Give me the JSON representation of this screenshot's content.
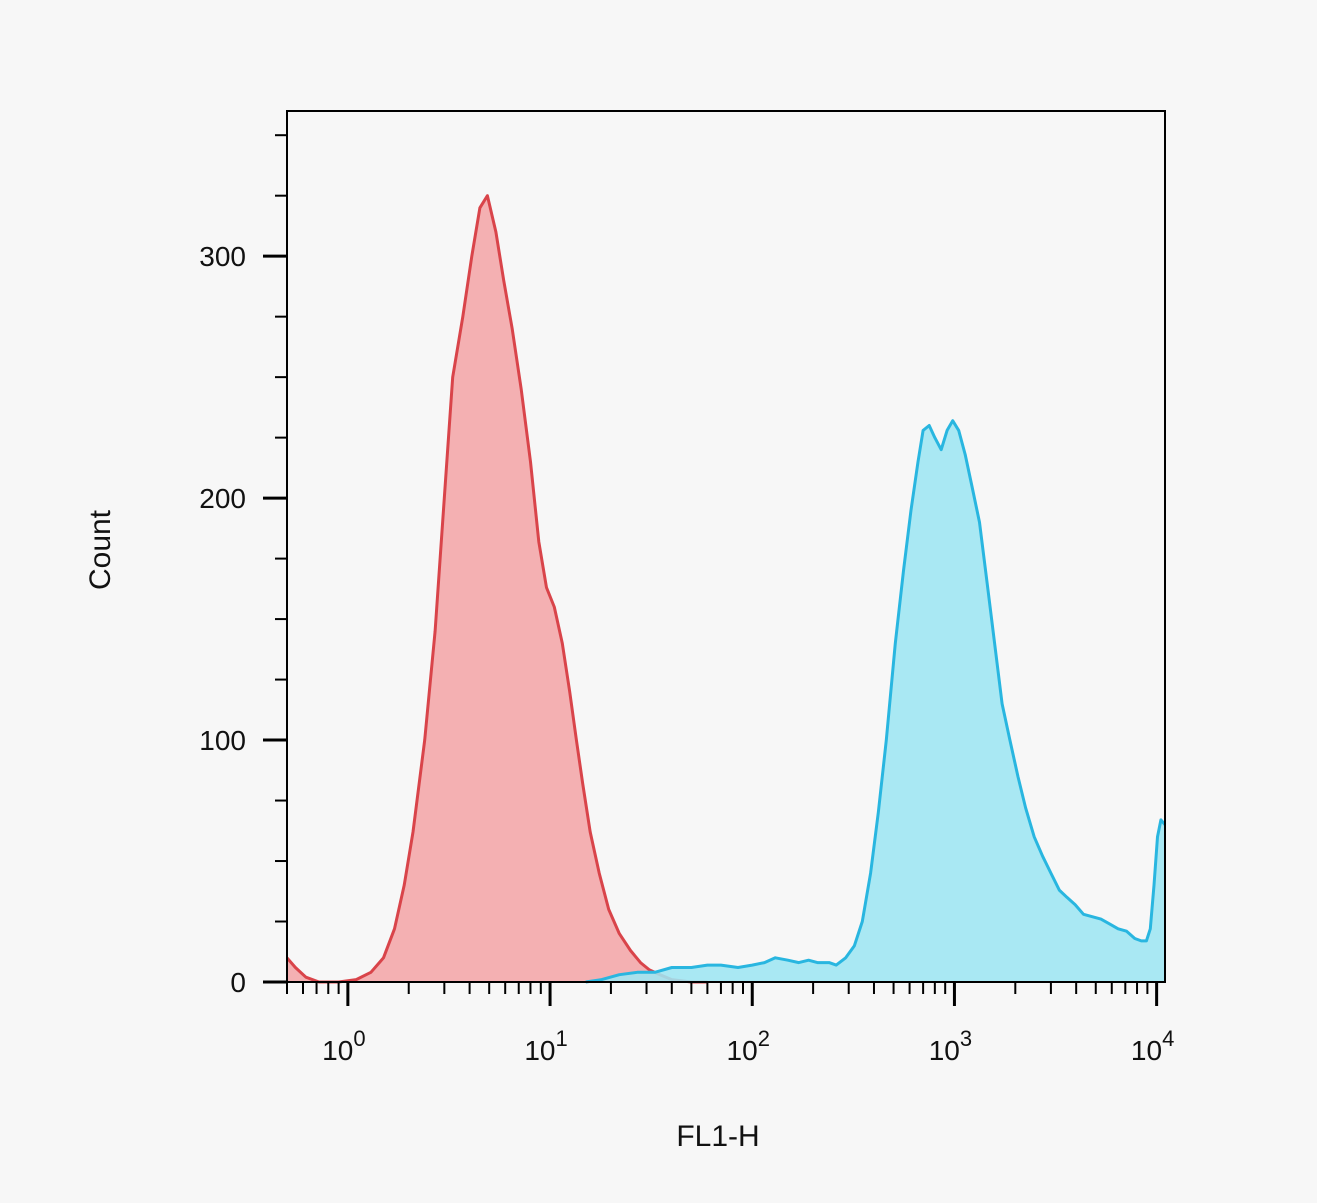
{
  "chart_data": {
    "type": "area",
    "title": "",
    "xlabel": "FL1-H",
    "ylabel": "Count",
    "x_scale": "log",
    "xlim": [
      0.5,
      11000
    ],
    "ylim": [
      0,
      360
    ],
    "x_ticks": [
      {
        "value": 1,
        "base": "10",
        "exp": "0"
      },
      {
        "value": 10,
        "base": "10",
        "exp": "1"
      },
      {
        "value": 100,
        "base": "10",
        "exp": "2"
      },
      {
        "value": 1000,
        "base": "10",
        "exp": "3"
      },
      {
        "value": 10000,
        "base": "10",
        "exp": "4"
      }
    ],
    "y_ticks": [
      {
        "value": 0,
        "label": "0"
      },
      {
        "value": 100,
        "label": "100"
      },
      {
        "value": 200,
        "label": "200"
      },
      {
        "value": 300,
        "label": "300"
      }
    ],
    "grid": false,
    "legend": "none",
    "series": [
      {
        "line_color": "#d9444a",
        "fill_color": "#f4a6a8",
        "points": [
          [
            0.5,
            10
          ],
          [
            0.55,
            6
          ],
          [
            0.62,
            2
          ],
          [
            0.72,
            0
          ],
          [
            0.9,
            0
          ],
          [
            1.1,
            1
          ],
          [
            1.3,
            4
          ],
          [
            1.5,
            10
          ],
          [
            1.7,
            22
          ],
          [
            1.9,
            40
          ],
          [
            2.1,
            62
          ],
          [
            2.4,
            100
          ],
          [
            2.7,
            145
          ],
          [
            3.0,
            200
          ],
          [
            3.3,
            250
          ],
          [
            3.7,
            275
          ],
          [
            4.1,
            300
          ],
          [
            4.5,
            320
          ],
          [
            4.9,
            325
          ],
          [
            5.4,
            310
          ],
          [
            5.9,
            290
          ],
          [
            6.5,
            270
          ],
          [
            7.2,
            245
          ],
          [
            8.0,
            215
          ],
          [
            8.8,
            182
          ],
          [
            9.6,
            163
          ],
          [
            10.5,
            155
          ],
          [
            11.5,
            140
          ],
          [
            12.5,
            120
          ],
          [
            13.5,
            100
          ],
          [
            14.5,
            82
          ],
          [
            15.8,
            62
          ],
          [
            17.5,
            45
          ],
          [
            19.5,
            30
          ],
          [
            22,
            20
          ],
          [
            25,
            13
          ],
          [
            28,
            8
          ],
          [
            31,
            5
          ],
          [
            35,
            3
          ],
          [
            40,
            1
          ],
          [
            50,
            0
          ],
          [
            60,
            0
          ]
        ]
      },
      {
        "line_color": "#29b6e0",
        "fill_color": "#9ee6f2",
        "points": [
          [
            15,
            0
          ],
          [
            18,
            1
          ],
          [
            22,
            3
          ],
          [
            27,
            4
          ],
          [
            33,
            4
          ],
          [
            40,
            6
          ],
          [
            50,
            6
          ],
          [
            60,
            7
          ],
          [
            70,
            7
          ],
          [
            85,
            6
          ],
          [
            100,
            7
          ],
          [
            115,
            8
          ],
          [
            130,
            10
          ],
          [
            150,
            9
          ],
          [
            170,
            8
          ],
          [
            190,
            9
          ],
          [
            210,
            8
          ],
          [
            240,
            8
          ],
          [
            260,
            7
          ],
          [
            290,
            10
          ],
          [
            320,
            15
          ],
          [
            350,
            25
          ],
          [
            385,
            45
          ],
          [
            420,
            70
          ],
          [
            460,
            100
          ],
          [
            510,
            140
          ],
          [
            560,
            170
          ],
          [
            610,
            195
          ],
          [
            660,
            215
          ],
          [
            700,
            228
          ],
          [
            750,
            230
          ],
          [
            800,
            225
          ],
          [
            860,
            220
          ],
          [
            920,
            228
          ],
          [
            980,
            232
          ],
          [
            1050,
            228
          ],
          [
            1130,
            218
          ],
          [
            1220,
            205
          ],
          [
            1330,
            190
          ],
          [
            1450,
            165
          ],
          [
            1580,
            140
          ],
          [
            1720,
            115
          ],
          [
            1880,
            100
          ],
          [
            2060,
            85
          ],
          [
            2250,
            72
          ],
          [
            2480,
            60
          ],
          [
            2730,
            52
          ],
          [
            3000,
            45
          ],
          [
            3300,
            38
          ],
          [
            3600,
            35
          ],
          [
            3950,
            32
          ],
          [
            4350,
            28
          ],
          [
            4800,
            27
          ],
          [
            5300,
            26
          ],
          [
            5850,
            24
          ],
          [
            6450,
            22
          ],
          [
            7100,
            21
          ],
          [
            7800,
            18
          ],
          [
            8400,
            17
          ],
          [
            8900,
            17
          ],
          [
            9300,
            22
          ],
          [
            9700,
            40
          ],
          [
            10100,
            60
          ],
          [
            10500,
            67
          ],
          [
            11000,
            65
          ]
        ]
      }
    ]
  }
}
